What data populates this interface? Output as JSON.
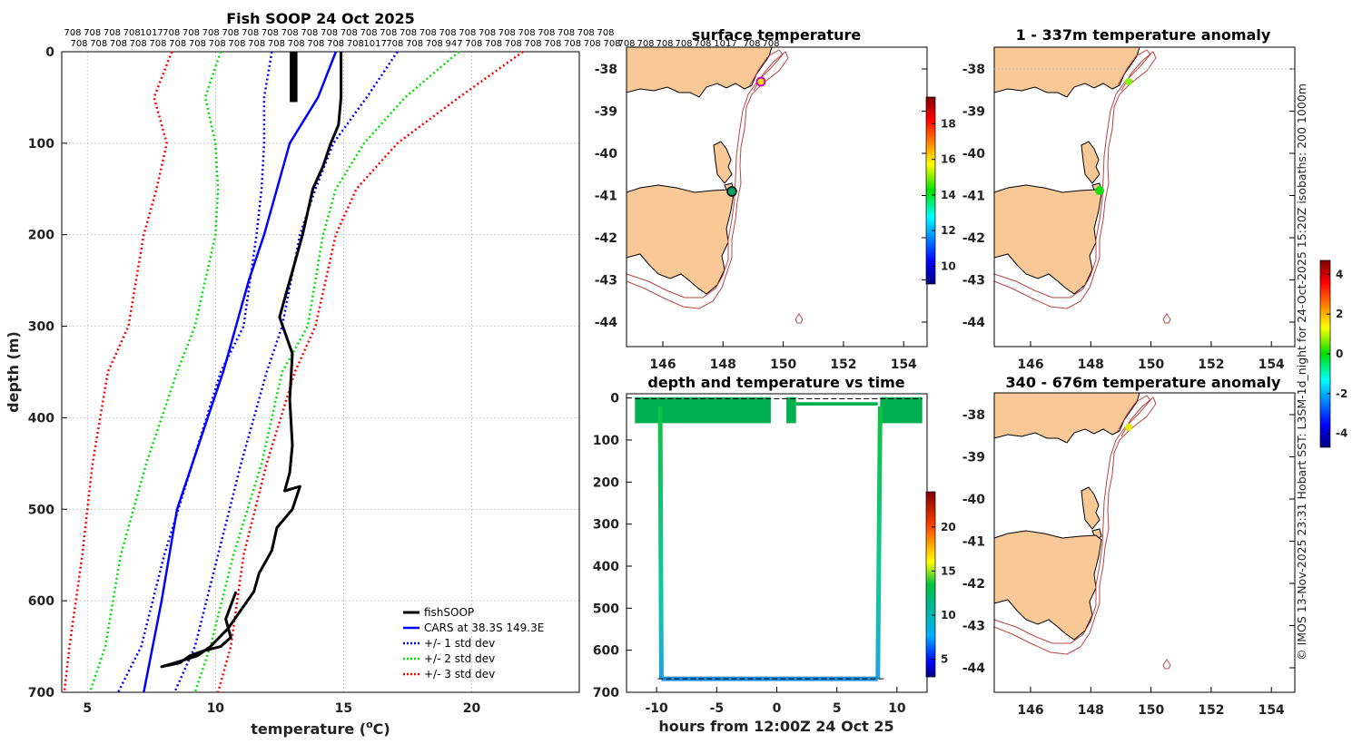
{
  "colors": {
    "fishsoop": "#000000",
    "cars": "#0000ff",
    "std1": "#0000ff",
    "std2": "#00e000",
    "std3": "#ff0000",
    "land": "#f8c897",
    "isobath": "#b44444",
    "track": "#00b050"
  },
  "profile": {
    "title": "Fish SOOP 24 Oct 2025",
    "counts_top": [
      "708",
      "708",
      "708",
      "708",
      "1017",
      "708",
      "708",
      "708",
      "708",
      "708",
      "708",
      "708",
      "708",
      "708",
      "708",
      "708",
      "708",
      "708",
      "708",
      "708",
      "708",
      "708",
      "708",
      "708",
      "708",
      "708",
      "708",
      "708"
    ],
    "counts_top2": [
      "708",
      "708",
      "708",
      "708",
      "708",
      "708",
      "708",
      "708",
      "708",
      "708",
      "708",
      "708",
      "708",
      "708",
      "708",
      "1017",
      "708",
      "708",
      "708",
      "947",
      "708",
      "708",
      "708",
      "708",
      "708",
      "708",
      "708",
      "708"
    ],
    "xlabel": "temperature (",
    "xlabel_sup": "o",
    "xlabel_end": "C)",
    "ylabel": "depth (m)",
    "xticks": [
      "5",
      "10",
      "15",
      "20"
    ],
    "yticks": [
      "0",
      "100",
      "200",
      "300",
      "400",
      "500",
      "600",
      "700"
    ],
    "legend": [
      "fishSOOP",
      "CARS at 38.3S 149.3E",
      "+/- 1 std dev",
      "+/- 2 std dev",
      "+/- 3 std dev"
    ]
  },
  "chart_data": [
    {
      "type": "line",
      "title": "Fish SOOP 24 Oct 2025",
      "xlabel": "temperature (oC)",
      "ylabel": "depth (m)",
      "xlim": [
        4,
        24.2
      ],
      "ylim": [
        700,
        0
      ],
      "series": [
        {
          "name": "fishSOOP",
          "x": [
            14.9,
            14.9,
            14.8,
            14.5,
            14.2,
            13.8,
            13.6,
            13.4,
            13.2,
            13.0,
            12.8,
            12.5,
            13.0,
            12.9,
            13.0,
            12.9,
            12.7,
            13.3,
            13.0,
            12.4,
            12.2,
            11.7,
            11.5,
            11.0,
            10.5,
            9.8,
            9.3,
            8.4,
            7.9,
            8.6,
            9.0,
            9.5,
            10.2,
            10.6,
            10.4,
            10.8
          ],
          "y": [
            0,
            50,
            80,
            100,
            125,
            150,
            175,
            200,
            220,
            240,
            260,
            290,
            330,
            380,
            430,
            460,
            480,
            475,
            500,
            520,
            545,
            570,
            590,
            610,
            630,
            650,
            660,
            668,
            672,
            668,
            660,
            655,
            650,
            640,
            620,
            590
          ]
        },
        {
          "name": "CARS at 38.3S 149.3E",
          "x": [
            14.7,
            14.0,
            12.9,
            11.9,
            11.3,
            10.8,
            10.3,
            9.7,
            9.1,
            8.5,
            7.9,
            7.2
          ],
          "y": [
            0,
            50,
            100,
            200,
            250,
            300,
            350,
            400,
            450,
            500,
            600,
            700
          ]
        },
        {
          "name": "+1 std dev",
          "x": [
            17.1,
            15.9,
            14.6,
            13.9,
            13.3,
            12.6,
            12.0,
            11.0,
            10.1,
            9.2,
            8.4
          ],
          "y": [
            0,
            50,
            100,
            150,
            200,
            300,
            350,
            450,
            550,
            650,
            700
          ]
        },
        {
          "name": "-1 std dev",
          "x": [
            12.2,
            11.9,
            11.9,
            11.8,
            11.6,
            11.1,
            10.2,
            9.1,
            8.0,
            7.1,
            6.2
          ],
          "y": [
            0,
            50,
            100,
            150,
            200,
            300,
            350,
            450,
            550,
            650,
            700
          ]
        },
        {
          "name": "+2 std dev",
          "x": [
            19.5,
            17.4,
            15.8,
            14.7,
            14.2,
            13.6,
            12.6,
            11.8,
            10.7,
            9.8,
            9.2
          ],
          "y": [
            0,
            50,
            100,
            150,
            200,
            300,
            350,
            450,
            550,
            650,
            700
          ]
        },
        {
          "name": "-2 std dev",
          "x": [
            10.2,
            9.6,
            10.0,
            10.1,
            10.0,
            9.2,
            8.5,
            7.3,
            6.3,
            5.7,
            5.1
          ],
          "y": [
            0,
            50,
            100,
            150,
            200,
            300,
            350,
            450,
            550,
            650,
            700
          ]
        },
        {
          "name": "+3 std dev",
          "x": [
            22.0,
            19.5,
            17.1,
            15.5,
            14.7,
            13.9,
            13.1,
            12.0,
            11.1,
            10.6,
            10.1
          ],
          "y": [
            0,
            50,
            100,
            150,
            200,
            300,
            350,
            450,
            550,
            650,
            700
          ]
        },
        {
          "name": "-3 std dev",
          "x": [
            8.3,
            7.6,
            8.1,
            7.7,
            7.2,
            6.6,
            5.8,
            5.2,
            4.8,
            4.3,
            4.1
          ],
          "y": [
            0,
            50,
            100,
            150,
            200,
            300,
            350,
            450,
            550,
            650,
            700
          ]
        }
      ]
    },
    {
      "type": "scatter",
      "title": "depth and temperature vs time",
      "xlabel": "hours from 12:00Z 24 Oct 25",
      "ylabel": "",
      "xlim": [
        -12.5,
        12.5
      ],
      "ylim": [
        700,
        -10
      ],
      "xticks": [
        "-10",
        "-5",
        "0",
        "5",
        "10"
      ],
      "yticks": [
        "0",
        "100",
        "200",
        "300",
        "400",
        "500",
        "600",
        "700"
      ],
      "colorbar_ticks": [
        "5",
        "10",
        "15",
        "20"
      ],
      "colorbar_range": [
        3,
        24
      ],
      "series": [
        {
          "name": "descent",
          "x": [
            -9.7,
            -9.6
          ],
          "y": [
            20,
            668
          ]
        },
        {
          "name": "bottom",
          "x": [
            -9.6,
            8.4
          ],
          "y": [
            668,
            668
          ]
        },
        {
          "name": "ascent",
          "x": [
            8.4,
            8.6
          ],
          "y": [
            668,
            20
          ]
        }
      ]
    }
  ],
  "maps": {
    "surface": {
      "title": "surface temperature",
      "counts": [
        "708",
        "708",
        "708",
        "708",
        "708",
        "1017",
        "708",
        "708"
      ],
      "yticks": [
        "-38",
        "-39",
        "-40",
        "-41",
        "-42",
        "-43",
        "-44"
      ],
      "xticks": [
        "146",
        "148",
        "150",
        "152",
        "154"
      ],
      "colorbar_ticks": [
        "10",
        "12",
        "14",
        "16",
        "18"
      ],
      "colorbar_range": [
        9,
        19.5
      ]
    },
    "anom1": {
      "title": "1 - 337m temperature anomaly",
      "yticks": [
        "-38",
        "-39",
        "-40",
        "-41",
        "-42",
        "-43",
        "-44"
      ],
      "xticks": [
        "146",
        "148",
        "150",
        "152",
        "154"
      ]
    },
    "anom2": {
      "title": "340 - 676m temperature anomaly",
      "yticks": [
        "-38",
        "-39",
        "-40",
        "-41",
        "-42",
        "-43",
        "-44"
      ],
      "xticks": [
        "146",
        "148",
        "150",
        "152",
        "154"
      ]
    },
    "anomaly_colorbar_ticks": [
      "4",
      "2",
      "0",
      "-2",
      "-4"
    ],
    "anomaly_colorbar_range": [
      -4.7,
      4.7
    ],
    "credit": "© IMOS 13-Nov-2025 23:31 Hobart SST: L3SM-1d_night for 24-Oct-2025 15:20Z isobaths: 200  1000m"
  }
}
